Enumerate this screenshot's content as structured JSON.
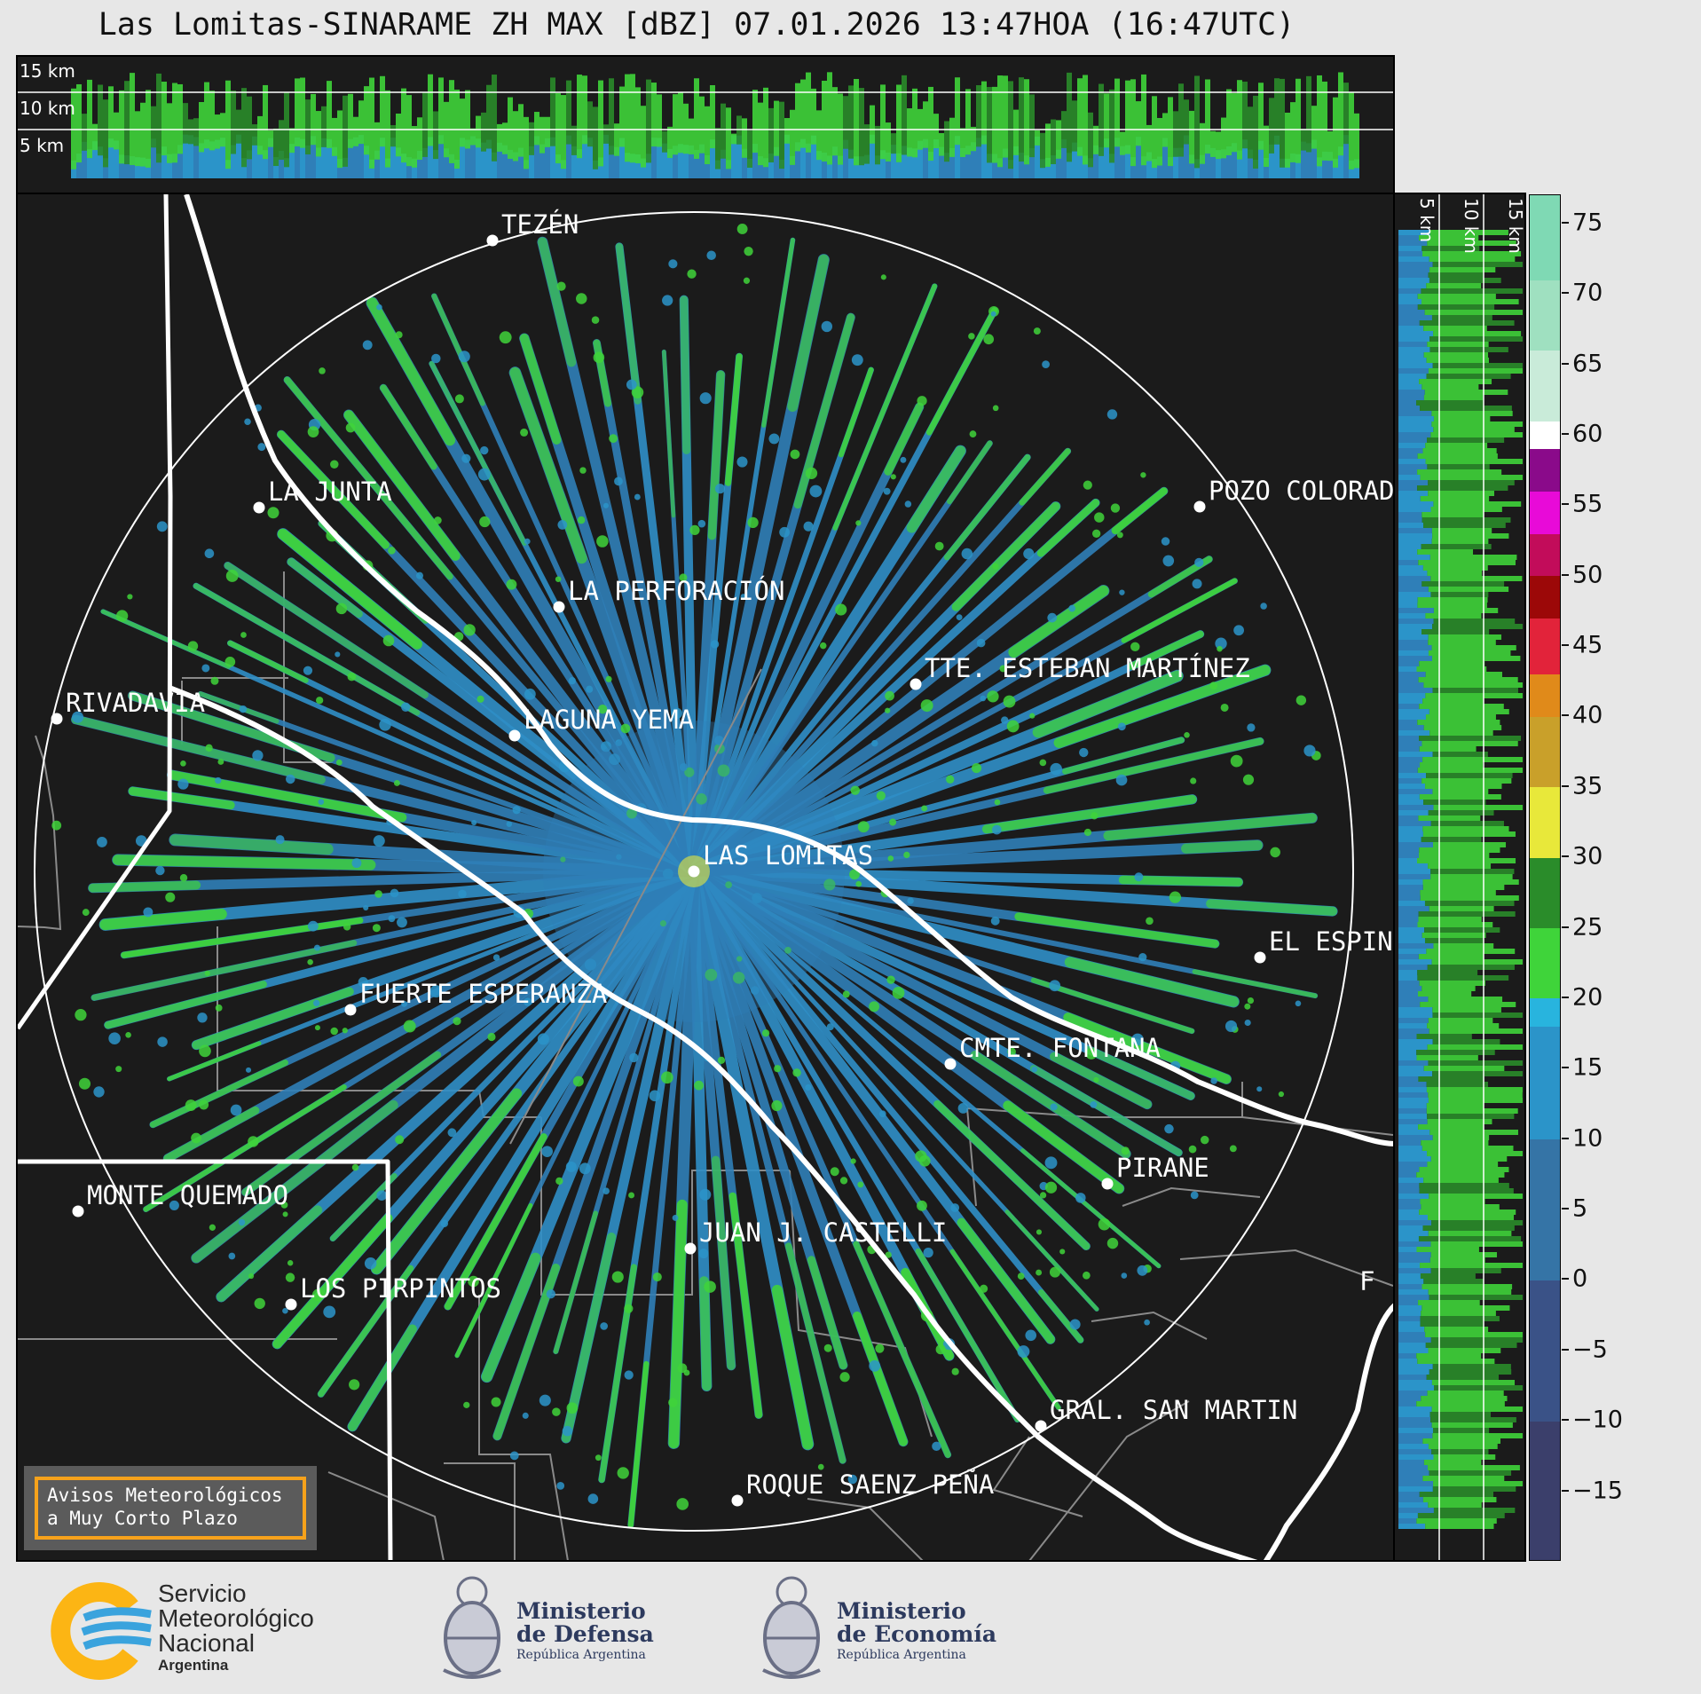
{
  "title": "Las Lomitas-SINARAME ZH MAX [dBZ] 07.01.2026 13:47HOA (16:47UTC)",
  "top_panel": {
    "height_labels": [
      "15 km",
      "10 km",
      "5 km"
    ]
  },
  "side_panel": {
    "height_labels": [
      "5 km",
      "10 km",
      "15 km"
    ]
  },
  "colorbar": {
    "unit": "dBZ",
    "range": [
      -20,
      77
    ],
    "ticks": [
      "75",
      "70",
      "65",
      "60",
      "55",
      "50",
      "45",
      "40",
      "35",
      "30",
      "25",
      "20",
      "15",
      "10",
      "5",
      "0",
      "−5",
      "−10",
      "−15"
    ],
    "tick_values": [
      75,
      70,
      65,
      60,
      55,
      50,
      45,
      40,
      35,
      30,
      25,
      20,
      15,
      10,
      5,
      0,
      -5,
      -10,
      -15
    ],
    "colors": [
      {
        "from": -20,
        "to": -10,
        "color": "#3b3f6b"
      },
      {
        "from": -10,
        "to": 0,
        "color": "#3a5287"
      },
      {
        "from": 0,
        "to": 10,
        "color": "#3574a6"
      },
      {
        "from": 10,
        "to": 18,
        "color": "#2b94c9"
      },
      {
        "from": 18,
        "to": 20,
        "color": "#28b4de"
      },
      {
        "from": 20,
        "to": 25,
        "color": "#3fd43a"
      },
      {
        "from": 25,
        "to": 30,
        "color": "#2a8c2a"
      },
      {
        "from": 30,
        "to": 35,
        "color": "#e8e83a"
      },
      {
        "from": 35,
        "to": 40,
        "color": "#c9a02a"
      },
      {
        "from": 40,
        "to": 43,
        "color": "#e08a1a"
      },
      {
        "from": 43,
        "to": 47,
        "color": "#e2233a"
      },
      {
        "from": 47,
        "to": 50,
        "color": "#9c0808"
      },
      {
        "from": 50,
        "to": 53,
        "color": "#c20c5a"
      },
      {
        "from": 53,
        "to": 56,
        "color": "#e80ad8"
      },
      {
        "from": 56,
        "to": 59,
        "color": "#8a0a8a"
      },
      {
        "from": 59,
        "to": 61,
        "color": "#ffffff"
      },
      {
        "from": 61,
        "to": 66,
        "color": "#c9ebd9"
      },
      {
        "from": 66,
        "to": 71,
        "color": "#9fe0c0"
      },
      {
        "from": 71,
        "to": 77,
        "color": "#7fd9b4"
      }
    ]
  },
  "radar": {
    "name": "LAS LOMITAS"
  },
  "places": [
    {
      "name": "TEZÉN"
    },
    {
      "name": "LA JUNTA"
    },
    {
      "name": "POZO COLORAD"
    },
    {
      "name": "LA PERFORACIÓN"
    },
    {
      "name": "TTE. ESTEBAN MARTÍNEZ"
    },
    {
      "name": "RIVADAVIA"
    },
    {
      "name": "LAGUNA YEMA"
    },
    {
      "name": "LAS LOMITAS"
    },
    {
      "name": "EL ESPIN"
    },
    {
      "name": "FUERTE ESPERANZA"
    },
    {
      "name": "CMTE. FONTANA"
    },
    {
      "name": "PIRANE"
    },
    {
      "name": "MONTE QUEMADO"
    },
    {
      "name": "JUAN J. CASTELLI"
    },
    {
      "name": "LOS PIRPINTOS"
    },
    {
      "name": "GRAL. SAN MARTIN"
    },
    {
      "name": "ROQUE SAENZ PEÑA"
    },
    {
      "name": "F"
    }
  ],
  "notice": {
    "line1": "Avisos Meteorológicos",
    "line2": "a Muy Corto Plazo"
  },
  "footer": {
    "smn": {
      "line1": "Servicio",
      "line2": "Meteorológico",
      "line3": "Nacional",
      "line4": "Argentina"
    },
    "defensa": {
      "line1": "Ministerio",
      "line2": "de Defensa",
      "line3": "República Argentina"
    },
    "economia": {
      "line1": "Ministerio",
      "line2": "de Economía",
      "line3": "República Argentina"
    }
  },
  "style_colors": {
    "panel_bg": "#1b1b1b",
    "accent_orange": "#f7a21b",
    "smn_blue": "#3aa3dd",
    "smn_yellow": "#fcb514"
  }
}
